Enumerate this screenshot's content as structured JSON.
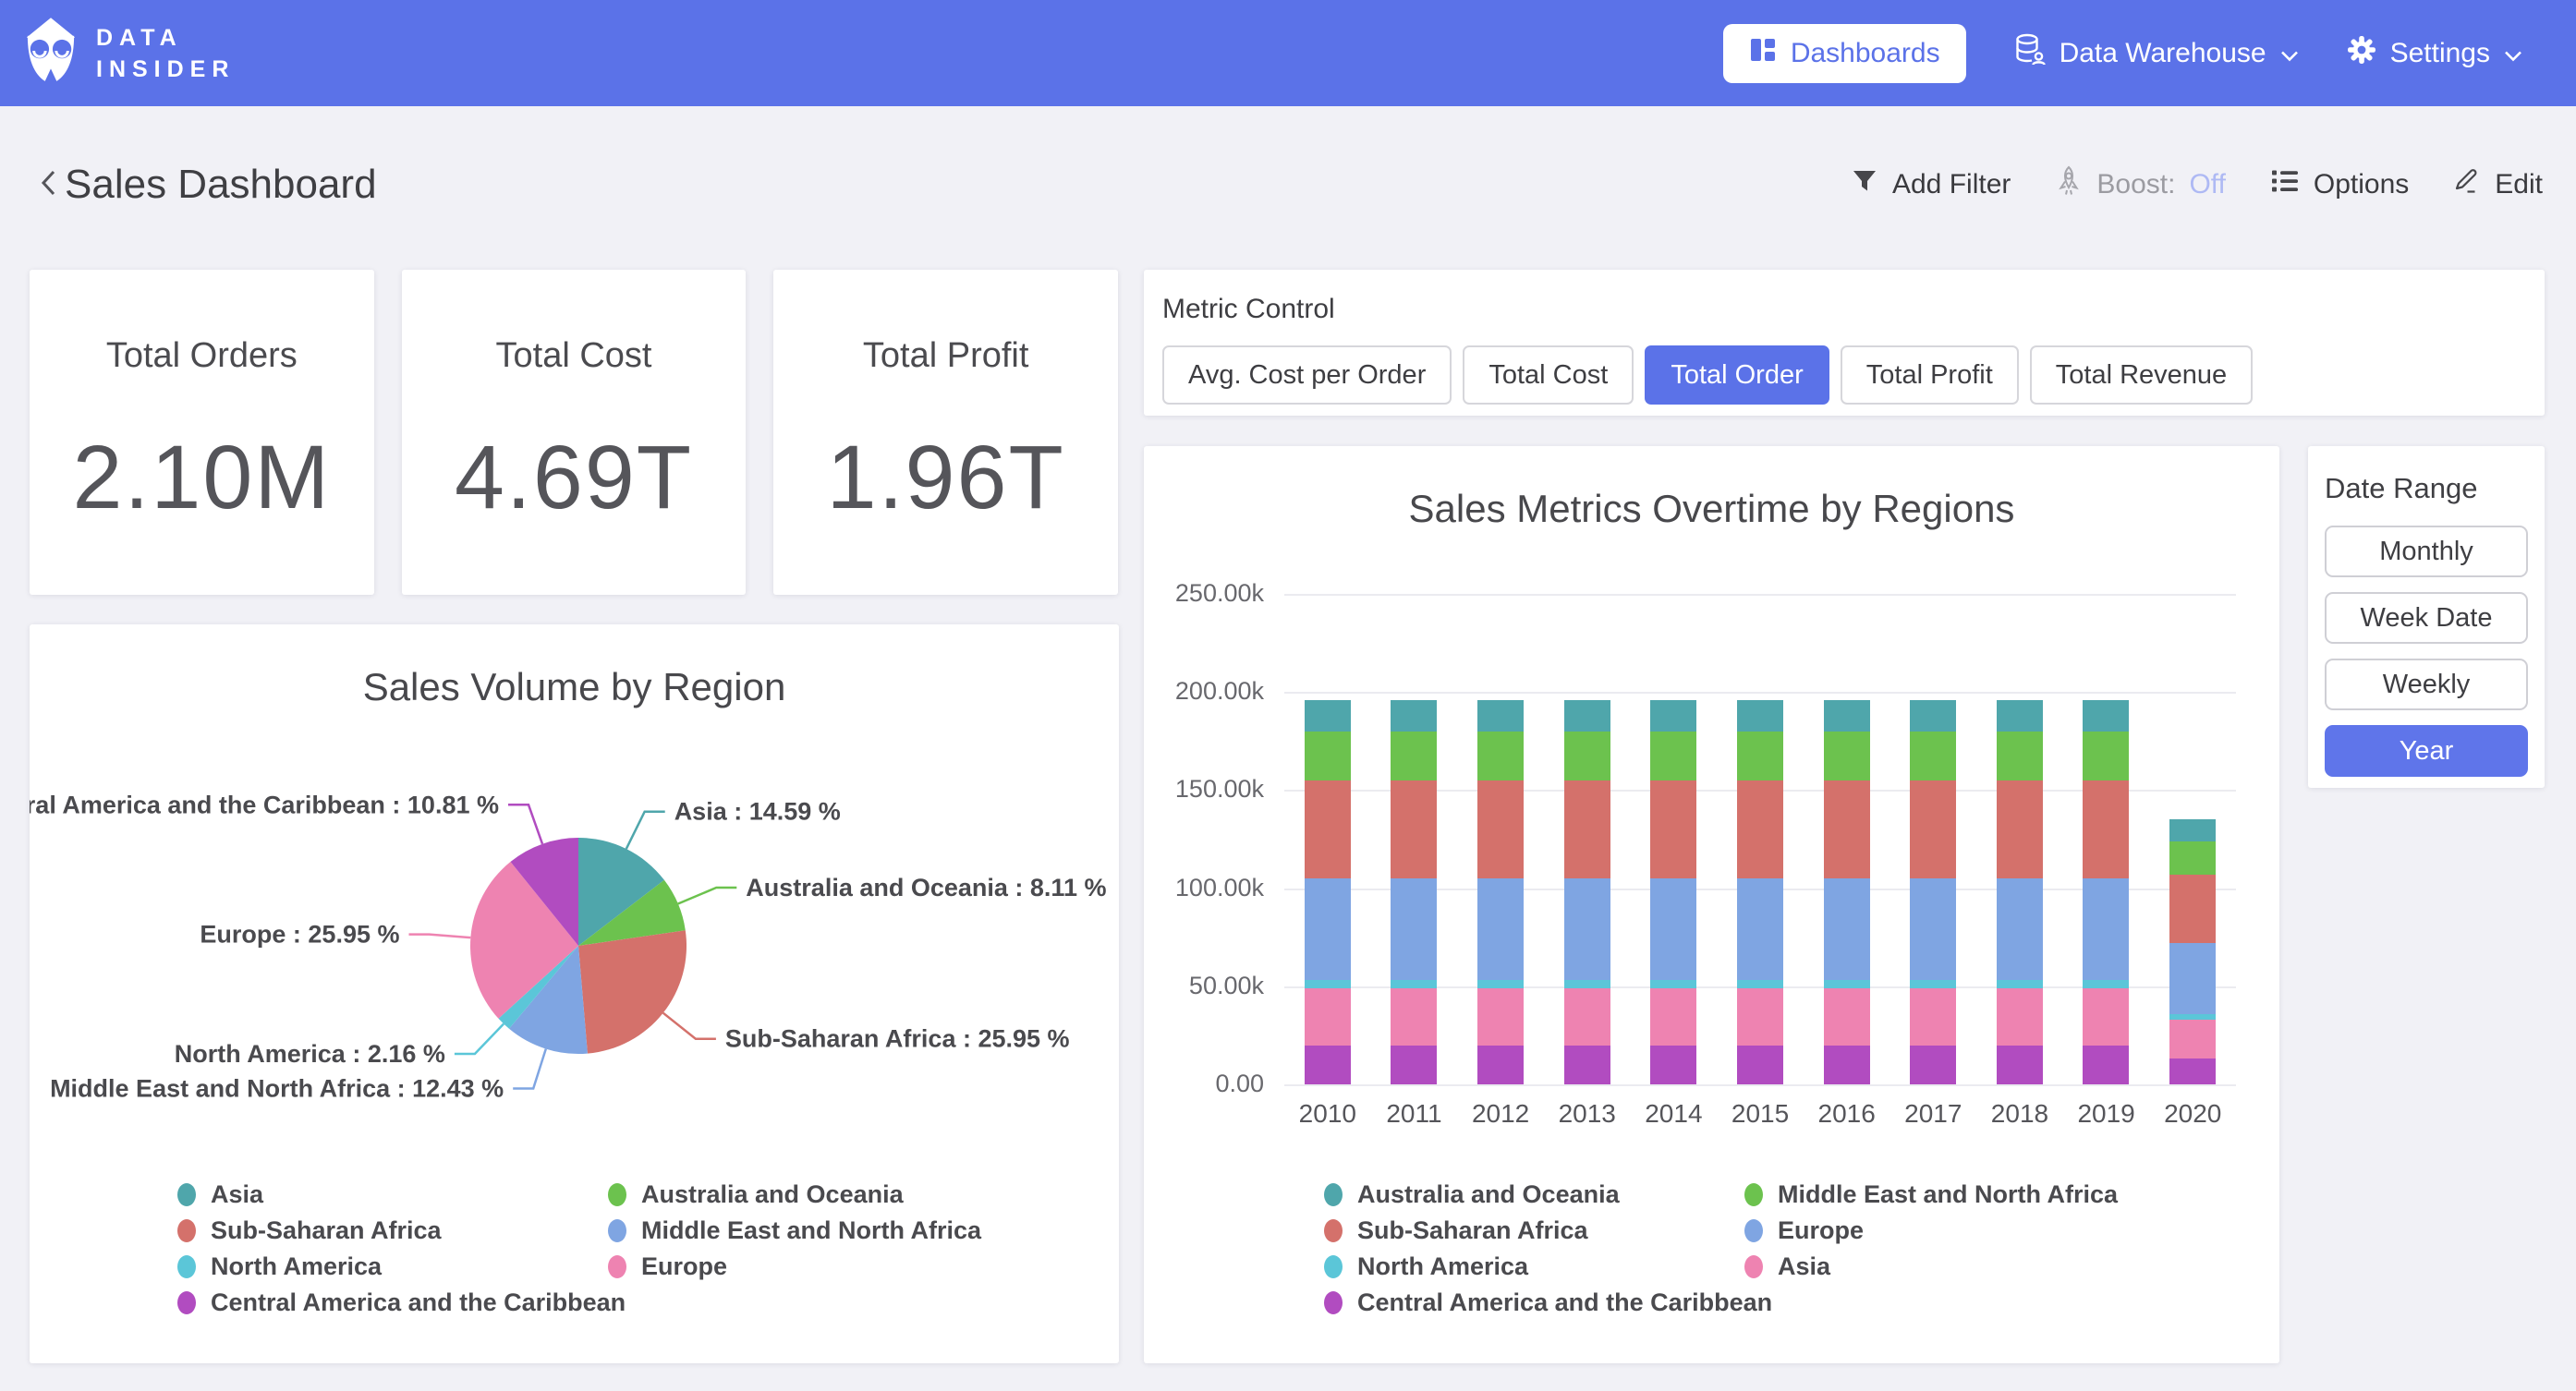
{
  "navbar": {
    "bg_color": "#5B72E8",
    "brand": {
      "line1": "DATA",
      "line2": "INSIDER"
    },
    "items": [
      {
        "label": "Dashboards",
        "icon": "dashboard-grid-icon",
        "active": true
      },
      {
        "label": "Data Warehouse",
        "icon": "database-icon",
        "active": false,
        "has_dropdown": true
      },
      {
        "label": "Settings",
        "icon": "gear-icon",
        "active": false,
        "has_dropdown": true
      }
    ]
  },
  "header": {
    "title": "Sales Dashboard",
    "actions": [
      {
        "label": "Add Filter",
        "icon": "funnel-icon"
      },
      {
        "label": "Boost:",
        "value": "Off",
        "icon": "rocket-icon",
        "value_color": "#AEB9F4"
      },
      {
        "label": "Options",
        "icon": "list-icon"
      },
      {
        "label": "Edit",
        "icon": "pencil-icon"
      }
    ]
  },
  "kpis": [
    {
      "label": "Total Orders",
      "value": "2.10M"
    },
    {
      "label": "Total Cost",
      "value": "4.69T"
    },
    {
      "label": "Total Profit",
      "value": "1.96T"
    }
  ],
  "metric_control": {
    "label": "Metric Control",
    "options": [
      {
        "label": "Avg. Cost per Order",
        "active": false
      },
      {
        "label": "Total Cost",
        "active": false
      },
      {
        "label": "Total Order",
        "active": true
      },
      {
        "label": "Total Profit",
        "active": false
      },
      {
        "label": "Total Revenue",
        "active": false
      }
    ]
  },
  "date_range": {
    "label": "Date Range",
    "options": [
      {
        "label": "Monthly",
        "active": false
      },
      {
        "label": "Week Date",
        "active": false
      },
      {
        "label": "Weekly",
        "active": false
      },
      {
        "label": "Year",
        "active": true
      }
    ]
  },
  "accent_color": "#5B72E8",
  "chart_data": [
    {
      "type": "pie",
      "title": "Sales Volume by Region",
      "label_format": "{label} : {value} %",
      "slices": [
        {
          "label": "Asia",
          "value": 14.59,
          "color": "#4FA6AB"
        },
        {
          "label": "Australia and Oceania",
          "value": 8.11,
          "color": "#6CC24E"
        },
        {
          "label": "Sub-Saharan Africa",
          "value": 25.95,
          "color": "#D4716B"
        },
        {
          "label": "Middle East and North Africa",
          "value": 12.43,
          "color": "#7FA5E2"
        },
        {
          "label": "North America",
          "value": 2.16,
          "color": "#5BC6D8"
        },
        {
          "label": "Europe",
          "value": 25.95,
          "color": "#EE83B1"
        },
        {
          "label": "Central America and the Caribbean",
          "value": 10.81,
          "color": "#B14CC0"
        }
      ],
      "legend_columns": [
        [
          "Asia",
          "Sub-Saharan Africa",
          "North America",
          "Central America and the Caribbean"
        ],
        [
          "Australia and Oceania",
          "Middle East and North Africa",
          "Europe"
        ]
      ]
    },
    {
      "type": "bar",
      "stacked": true,
      "stack_order": "bottom-to-top",
      "title": "Sales Metrics Overtime by Regions",
      "categories": [
        "2010",
        "2011",
        "2012",
        "2013",
        "2014",
        "2015",
        "2016",
        "2017",
        "2018",
        "2019",
        "2020"
      ],
      "unit": "thousands",
      "ylim": [
        0,
        250
      ],
      "yticks": [
        "250.00k",
        "200.00k",
        "150.00k",
        "100.00k",
        "50.00k",
        "0.00"
      ],
      "series": [
        {
          "name": "Central America and the Caribbean",
          "color": "#B14CC0",
          "values": [
            20,
            20,
            20,
            20,
            20,
            20,
            20,
            20,
            20,
            20,
            13
          ]
        },
        {
          "name": "Asia",
          "color": "#EE83B1",
          "values": [
            29,
            29,
            29,
            29,
            29,
            29,
            29,
            29,
            29,
            29,
            20
          ]
        },
        {
          "name": "North America",
          "color": "#5BC6D8",
          "values": [
            4,
            4,
            4,
            4,
            4,
            4,
            4,
            4,
            4,
            4,
            3
          ]
        },
        {
          "name": "Europe",
          "color": "#7FA5E2",
          "values": [
            52,
            52,
            52,
            52,
            52,
            52,
            52,
            52,
            52,
            52,
            36
          ]
        },
        {
          "name": "Sub-Saharan Africa",
          "color": "#D4716B",
          "values": [
            50,
            50,
            50,
            50,
            50,
            50,
            50,
            50,
            50,
            50,
            35
          ]
        },
        {
          "name": "Middle East and North Africa",
          "color": "#6CC24E",
          "values": [
            25,
            25,
            25,
            25,
            25,
            25,
            25,
            25,
            25,
            25,
            17
          ]
        },
        {
          "name": "Australia and Oceania",
          "color": "#4FA6AB",
          "values": [
            16,
            16,
            16,
            16,
            16,
            16,
            16,
            16,
            16,
            16,
            11
          ]
        }
      ],
      "legend_columns": [
        [
          "Australia and Oceania",
          "Sub-Saharan Africa",
          "North America",
          "Central America and the Caribbean"
        ],
        [
          "Middle East and North Africa",
          "Europe",
          "Asia"
        ]
      ]
    }
  ]
}
